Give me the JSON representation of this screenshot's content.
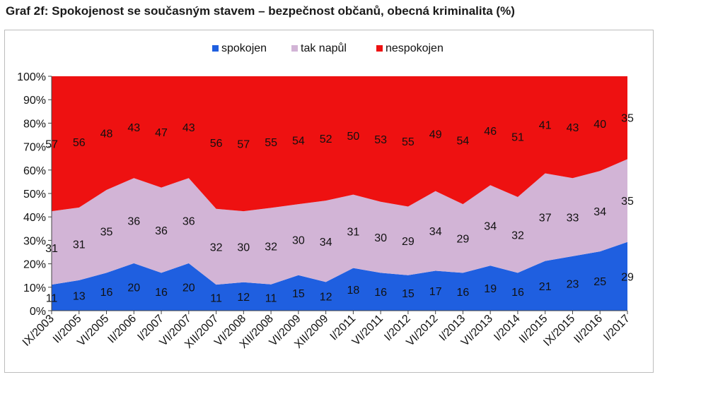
{
  "title": "Graf 2f: Spokojenost se současným stavem – bezpečnost občanů, obecná kriminalita (%)",
  "chart_data": {
    "type": "area",
    "stacked": true,
    "categories": [
      "IX/2003",
      "II/2005",
      "VI/2005",
      "II/2006",
      "I/2007",
      "VI/2007",
      "XII/2007",
      "VI/2008",
      "XII/2008",
      "VI/2009",
      "XII/2009",
      "I/2011",
      "VI/2011",
      "I/2012",
      "VI/2012",
      "I/2013",
      "VI/2013",
      "I/2014",
      "II/2015",
      "IX/2015",
      "II/2016",
      "I/2017"
    ],
    "series": [
      {
        "name": "spokojen",
        "color": "#1f5fe0",
        "values": [
          11,
          13,
          16,
          20,
          16,
          20,
          11,
          12,
          11,
          15,
          12,
          18,
          16,
          15,
          17,
          16,
          19,
          16,
          21,
          23,
          25,
          29
        ]
      },
      {
        "name": "tak napůl",
        "color": "#d2b4d6",
        "values": [
          31,
          31,
          35,
          36,
          36,
          36,
          32,
          30,
          32,
          30,
          34,
          31,
          30,
          29,
          34,
          29,
          34,
          32,
          37,
          33,
          34,
          35
        ]
      },
      {
        "name": "nespokojen",
        "color": "#ee1111",
        "values": [
          57,
          56,
          48,
          43,
          47,
          43,
          56,
          57,
          55,
          54,
          52,
          50,
          53,
          55,
          49,
          54,
          46,
          51,
          41,
          43,
          40,
          35
        ]
      }
    ],
    "ylim": [
      0,
      100
    ],
    "yticks": [
      "0%",
      "10%",
      "20%",
      "30%",
      "40%",
      "50%",
      "60%",
      "70%",
      "80%",
      "90%",
      "100%"
    ],
    "legend_position": "top",
    "grid": false
  }
}
